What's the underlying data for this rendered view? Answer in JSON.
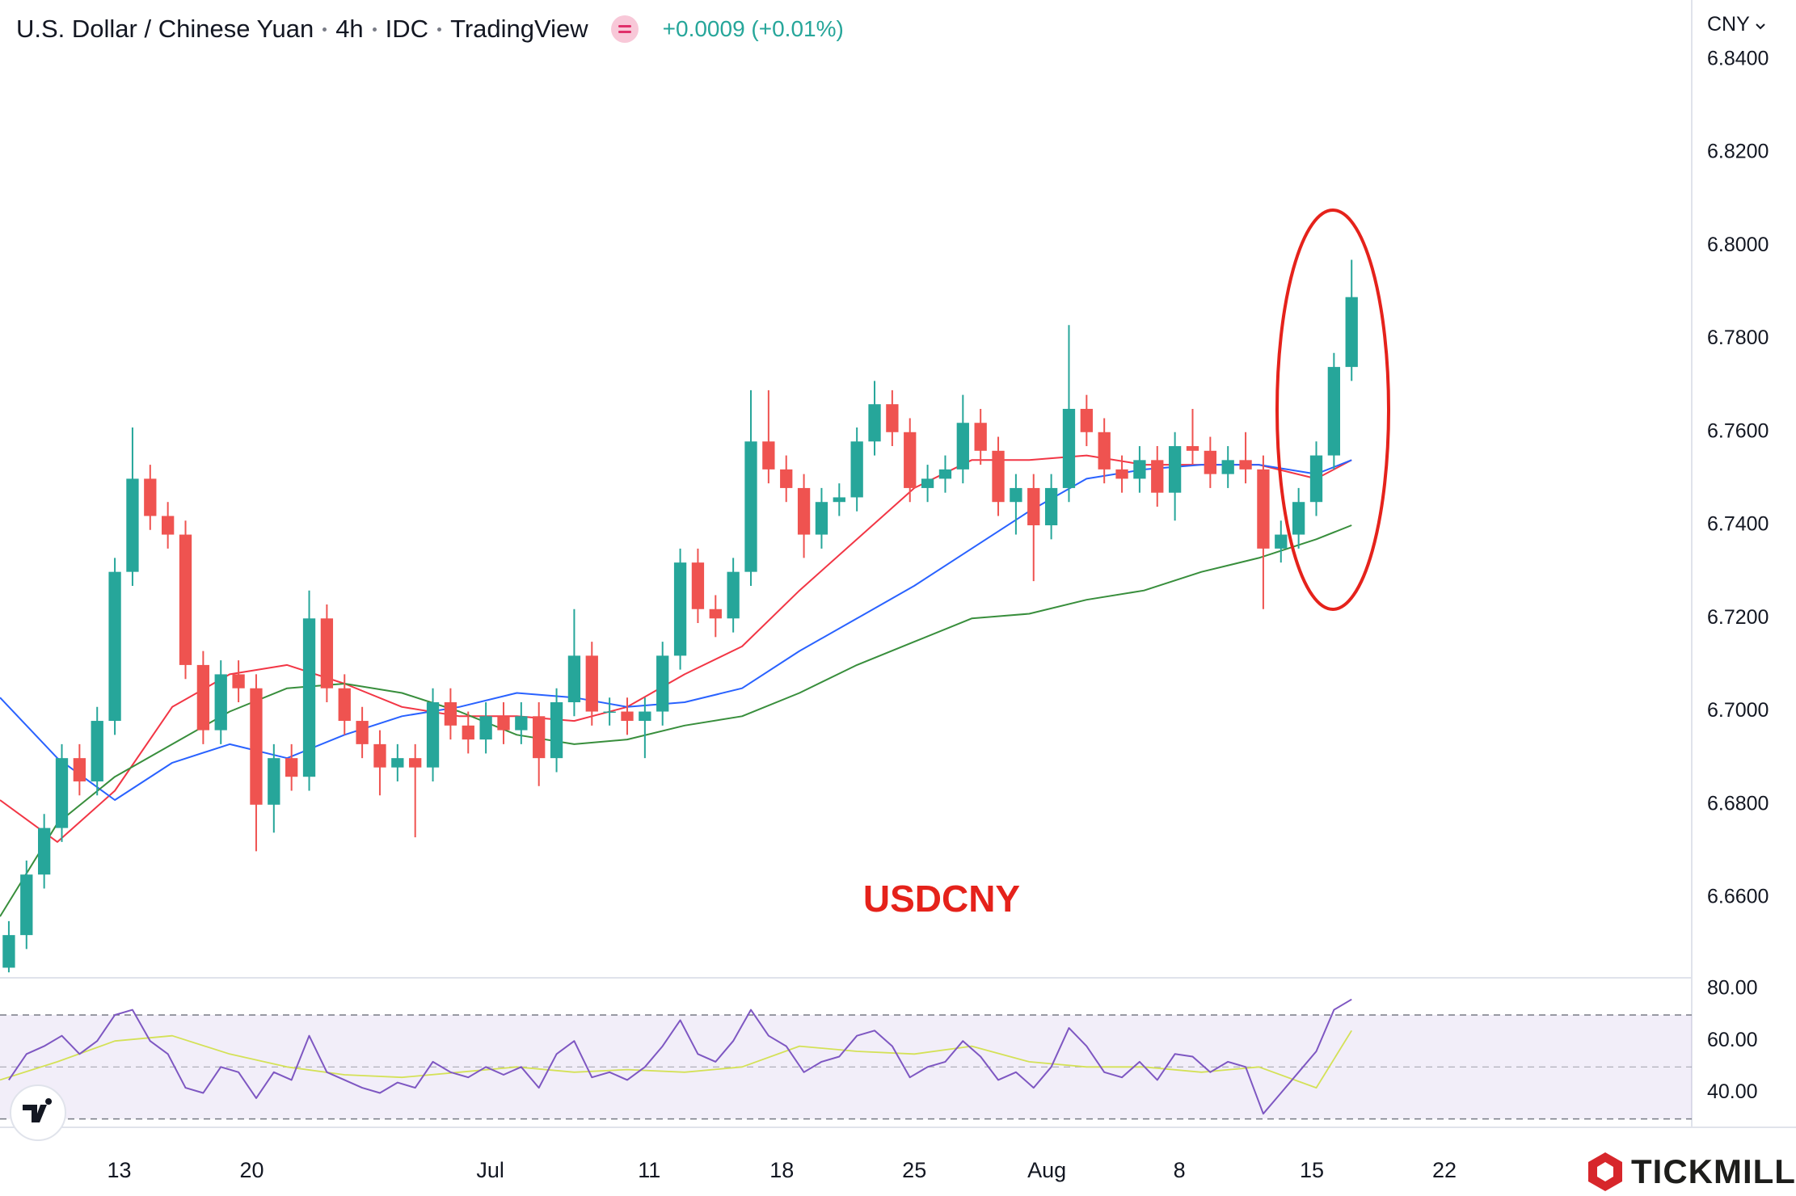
{
  "header": {
    "title": "U.S. Dollar / Chinese Yuan",
    "interval": "4h",
    "exchange": "IDC",
    "provider": "TradingView",
    "change": "+0.0009 (+0.01%)",
    "currency": "CNY"
  },
  "logo": "TICKMILL",
  "chart_data": [
    {
      "type": "candlestick",
      "annotation": "USDCNY",
      "up_color": "#26a69a",
      "down_color": "#ef5350",
      "xlim": [
        0,
        383
      ],
      "ylim": [
        6.643,
        6.8528
      ],
      "yticks": [
        {
          "value": 6.66,
          "label": "6.6600"
        },
        {
          "value": 6.68,
          "label": "6.6800"
        },
        {
          "value": 6.7,
          "label": "6.7000"
        },
        {
          "value": 6.72,
          "label": "6.7200"
        },
        {
          "value": 6.74,
          "label": "6.7400"
        },
        {
          "value": 6.76,
          "label": "6.7600"
        },
        {
          "value": 6.78,
          "label": "6.7800"
        },
        {
          "value": 6.8,
          "label": "6.8000"
        },
        {
          "value": 6.82,
          "label": "6.8200"
        },
        {
          "value": 6.84,
          "label": "6.8400"
        }
      ],
      "xticks": [
        {
          "value": 27,
          "label": "13"
        },
        {
          "value": 57,
          "label": "20"
        },
        {
          "value": 111,
          "label": "Jul"
        },
        {
          "value": 147,
          "label": "11"
        },
        {
          "value": 177,
          "label": "18"
        },
        {
          "value": 207,
          "label": "25"
        },
        {
          "value": 237,
          "label": "Aug"
        },
        {
          "value": 267,
          "label": "8"
        },
        {
          "value": 297,
          "label": "15"
        },
        {
          "value": 327,
          "label": "22"
        }
      ],
      "x": [
        2,
        6,
        10,
        14,
        18,
        22,
        26,
        30,
        34,
        38,
        42,
        46,
        50,
        54,
        58,
        62,
        66,
        70,
        74,
        78,
        82,
        86,
        90,
        94,
        98,
        102,
        106,
        110,
        114,
        118,
        122,
        126,
        130,
        134,
        138,
        142,
        146,
        150,
        154,
        158,
        162,
        166,
        170,
        174,
        178,
        182,
        186,
        190,
        194,
        198,
        202,
        206,
        210,
        214,
        218,
        222,
        226,
        230,
        234,
        238,
        242,
        246,
        250,
        254,
        258,
        262,
        266,
        270,
        274,
        278,
        282,
        286,
        290,
        294,
        298,
        302,
        306
      ],
      "open": [
        6.645,
        6.652,
        6.665,
        6.675,
        6.69,
        6.685,
        6.698,
        6.73,
        6.75,
        6.742,
        6.738,
        6.71,
        6.696,
        6.708,
        6.705,
        6.68,
        6.69,
        6.686,
        6.72,
        6.705,
        6.698,
        6.693,
        6.688,
        6.69,
        6.688,
        6.702,
        6.697,
        6.694,
        6.699,
        6.696,
        6.699,
        6.69,
        6.702,
        6.712,
        6.7,
        6.7,
        6.698,
        6.7,
        6.712,
        6.732,
        6.722,
        6.72,
        6.73,
        6.758,
        6.752,
        6.748,
        6.738,
        6.745,
        6.746,
        6.758,
        6.766,
        6.76,
        6.748,
        6.75,
        6.752,
        6.762,
        6.756,
        6.745,
        6.748,
        6.74,
        6.748,
        6.765,
        6.76,
        6.752,
        6.75,
        6.754,
        6.747,
        6.757,
        6.756,
        6.751,
        6.754,
        6.752,
        6.735,
        6.738,
        6.745,
        6.755,
        6.774
      ],
      "high": [
        6.655,
        6.668,
        6.678,
        6.693,
        6.693,
        6.701,
        6.733,
        6.761,
        6.753,
        6.745,
        6.741,
        6.713,
        6.711,
        6.711,
        6.708,
        6.693,
        6.693,
        6.726,
        6.723,
        6.708,
        6.701,
        6.696,
        6.693,
        6.693,
        6.705,
        6.705,
        6.7,
        6.702,
        6.702,
        6.702,
        6.702,
        6.705,
        6.722,
        6.715,
        6.703,
        6.703,
        6.703,
        6.715,
        6.735,
        6.735,
        6.725,
        6.733,
        6.769,
        6.769,
        6.755,
        6.751,
        6.748,
        6.749,
        6.761,
        6.771,
        6.769,
        6.763,
        6.753,
        6.755,
        6.768,
        6.765,
        6.759,
        6.751,
        6.751,
        6.751,
        6.783,
        6.768,
        6.763,
        6.755,
        6.757,
        6.757,
        6.76,
        6.765,
        6.759,
        6.757,
        6.76,
        6.755,
        6.741,
        6.748,
        6.758,
        6.777,
        6.797
      ],
      "low": [
        6.644,
        6.649,
        6.662,
        6.672,
        6.682,
        6.682,
        6.695,
        6.727,
        6.739,
        6.735,
        6.707,
        6.693,
        6.693,
        6.702,
        6.67,
        6.674,
        6.683,
        6.683,
        6.702,
        6.695,
        6.69,
        6.682,
        6.685,
        6.673,
        6.685,
        6.694,
        6.691,
        6.691,
        6.693,
        6.693,
        6.684,
        6.687,
        6.699,
        6.697,
        6.697,
        6.695,
        6.69,
        6.697,
        6.709,
        6.719,
        6.716,
        6.717,
        6.727,
        6.749,
        6.745,
        6.733,
        6.735,
        6.742,
        6.743,
        6.755,
        6.757,
        6.745,
        6.745,
        6.747,
        6.749,
        6.753,
        6.742,
        6.738,
        6.728,
        6.737,
        6.745,
        6.757,
        6.749,
        6.747,
        6.747,
        6.744,
        6.741,
        6.753,
        6.748,
        6.748,
        6.749,
        6.722,
        6.732,
        6.735,
        6.742,
        6.752,
        6.771
      ],
      "close": [
        6.652,
        6.665,
        6.675,
        6.69,
        6.685,
        6.698,
        6.73,
        6.75,
        6.742,
        6.738,
        6.71,
        6.696,
        6.708,
        6.705,
        6.68,
        6.69,
        6.686,
        6.72,
        6.705,
        6.698,
        6.693,
        6.688,
        6.69,
        6.688,
        6.702,
        6.697,
        6.694,
        6.699,
        6.696,
        6.699,
        6.69,
        6.702,
        6.712,
        6.7,
        6.7,
        6.698,
        6.7,
        6.712,
        6.732,
        6.722,
        6.72,
        6.73,
        6.758,
        6.752,
        6.748,
        6.738,
        6.745,
        6.746,
        6.758,
        6.766,
        6.76,
        6.748,
        6.75,
        6.752,
        6.762,
        6.756,
        6.745,
        6.748,
        6.74,
        6.748,
        6.765,
        6.76,
        6.752,
        6.75,
        6.754,
        6.747,
        6.757,
        6.756,
        6.751,
        6.754,
        6.752,
        6.735,
        6.738,
        6.745,
        6.755,
        6.774,
        6.789
      ],
      "series": [
        {
          "color": "#f23645",
          "x": [
            0,
            13,
            26,
            39,
            52,
            65,
            78,
            91,
            104,
            117,
            130,
            142,
            155,
            168,
            181,
            194,
            207,
            220,
            233,
            246,
            259,
            272,
            285,
            298,
            306
          ],
          "values": [
            6.681,
            6.672,
            6.683,
            6.701,
            6.708,
            6.71,
            6.706,
            6.701,
            6.699,
            6.699,
            6.698,
            6.701,
            6.708,
            6.714,
            6.726,
            6.737,
            6.748,
            6.754,
            6.754,
            6.755,
            6.753,
            6.753,
            6.753,
            6.75,
            6.754
          ]
        },
        {
          "color": "#2962ff",
          "x": [
            0,
            13,
            26,
            39,
            52,
            65,
            78,
            91,
            104,
            117,
            130,
            142,
            155,
            168,
            181,
            194,
            207,
            220,
            233,
            246,
            259,
            272,
            285,
            298,
            306
          ],
          "values": [
            6.703,
            6.69,
            6.681,
            6.689,
            6.693,
            6.69,
            6.695,
            6.699,
            6.701,
            6.704,
            6.703,
            6.701,
            6.702,
            6.705,
            6.713,
            6.72,
            6.727,
            6.735,
            6.743,
            6.75,
            6.752,
            6.753,
            6.753,
            6.751,
            6.754
          ]
        },
        {
          "color": "#388e3c",
          "x": [
            0,
            13,
            26,
            39,
            52,
            65,
            78,
            91,
            104,
            117,
            130,
            142,
            155,
            168,
            181,
            194,
            207,
            220,
            233,
            246,
            259,
            272,
            285,
            298,
            306
          ],
          "values": [
            6.656,
            6.676,
            6.686,
            6.693,
            6.7,
            6.705,
            6.706,
            6.704,
            6.7,
            6.695,
            6.693,
            6.694,
            6.697,
            6.699,
            6.704,
            6.71,
            6.715,
            6.72,
            6.721,
            6.724,
            6.726,
            6.73,
            6.733,
            6.737,
            6.74
          ]
        }
      ]
    },
    {
      "type": "line",
      "xlim": [
        0,
        383
      ],
      "ylim": [
        27.1,
        84.3
      ],
      "band": [
        30,
        70
      ],
      "midline": 50,
      "band_color": "#7e57c2",
      "yticks": [
        {
          "value": 40,
          "label": "40.00"
        },
        {
          "value": 60,
          "label": "60.00"
        },
        {
          "value": 80,
          "label": "80.00"
        }
      ],
      "series": [
        {
          "color": "#7e57c2",
          "x": [
            2,
            6,
            10,
            14,
            18,
            22,
            26,
            30,
            34,
            38,
            42,
            46,
            50,
            54,
            58,
            62,
            66,
            70,
            74,
            78,
            82,
            86,
            90,
            94,
            98,
            102,
            106,
            110,
            114,
            118,
            122,
            126,
            130,
            134,
            138,
            142,
            146,
            150,
            154,
            158,
            162,
            166,
            170,
            174,
            178,
            182,
            186,
            190,
            194,
            198,
            202,
            206,
            210,
            214,
            218,
            222,
            226,
            230,
            234,
            238,
            242,
            246,
            250,
            254,
            258,
            262,
            266,
            270,
            274,
            278,
            282,
            286,
            290,
            294,
            298,
            302,
            306
          ],
          "values": [
            45,
            55,
            58,
            62,
            55,
            60,
            70,
            72,
            60,
            55,
            42,
            40,
            50,
            48,
            38,
            48,
            45,
            62,
            48,
            45,
            42,
            40,
            44,
            42,
            52,
            48,
            46,
            50,
            47,
            50,
            42,
            55,
            60,
            46,
            48,
            45,
            50,
            58,
            68,
            55,
            52,
            60,
            72,
            62,
            58,
            48,
            52,
            54,
            62,
            64,
            58,
            46,
            50,
            52,
            60,
            54,
            45,
            48,
            42,
            50,
            65,
            58,
            48,
            46,
            52,
            45,
            55,
            54,
            48,
            52,
            50,
            32,
            40,
            48,
            56,
            72,
            76
          ]
        },
        {
          "color": "#d4e157",
          "x": [
            0,
            13,
            26,
            39,
            52,
            65,
            78,
            91,
            104,
            117,
            130,
            142,
            155,
            168,
            181,
            194,
            207,
            220,
            233,
            246,
            259,
            272,
            285,
            298,
            306
          ],
          "values": [
            45,
            52,
            60,
            62,
            55,
            50,
            47,
            46,
            48,
            50,
            48,
            49,
            48,
            50,
            58,
            56,
            55,
            58,
            52,
            50,
            50,
            48,
            50,
            42,
            64
          ]
        }
      ]
    }
  ]
}
